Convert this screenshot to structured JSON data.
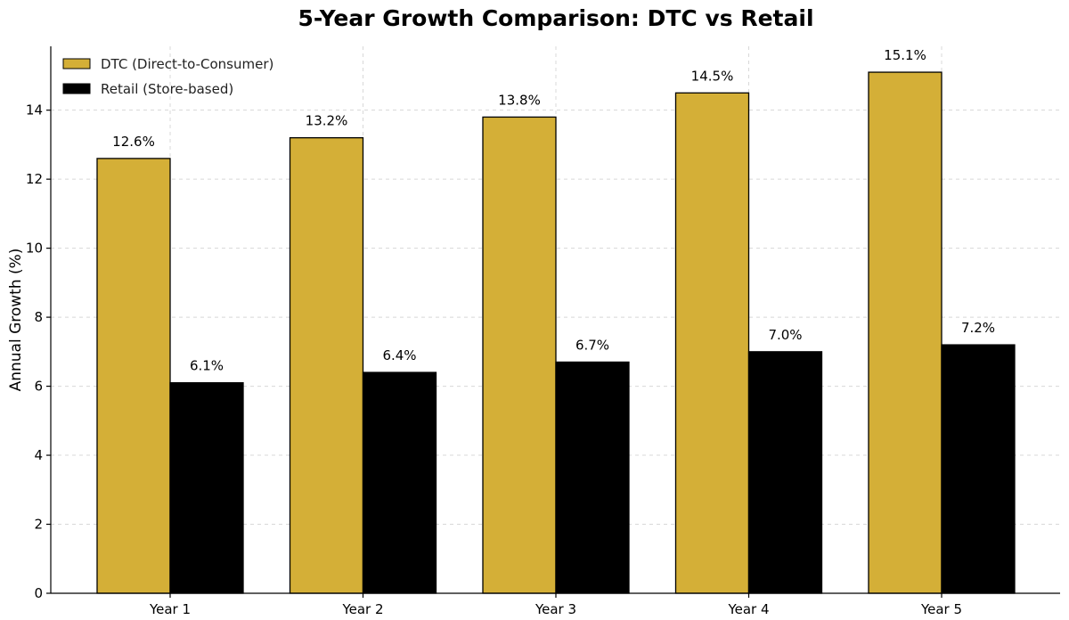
{
  "chart_data": {
    "type": "bar",
    "title": "5-Year Growth Comparison: DTC vs Retail",
    "xlabel": "",
    "ylabel": "Annual Growth (%)",
    "categories": [
      "Year 1",
      "Year 2",
      "Year 3",
      "Year 4",
      "Year 5"
    ],
    "series": [
      {
        "name": "DTC (Direct-to-Consumer)",
        "color": "#D4AF37",
        "values": [
          12.6,
          13.2,
          13.8,
          14.5,
          15.1
        ],
        "labels": [
          "12.6%",
          "13.2%",
          "13.8%",
          "14.5%",
          "15.1%"
        ]
      },
      {
        "name": "Retail (Store-based)",
        "color": "#000000",
        "values": [
          6.1,
          6.4,
          6.7,
          7.0,
          7.2
        ],
        "labels": [
          "6.1%",
          "6.4%",
          "6.7%",
          "7.0%",
          "7.2%"
        ]
      }
    ],
    "ylim": [
      0,
      15.85
    ],
    "yticks": [
      0,
      2,
      4,
      6,
      8,
      10,
      12,
      14
    ],
    "grid": true,
    "legend_position": "top-left"
  }
}
